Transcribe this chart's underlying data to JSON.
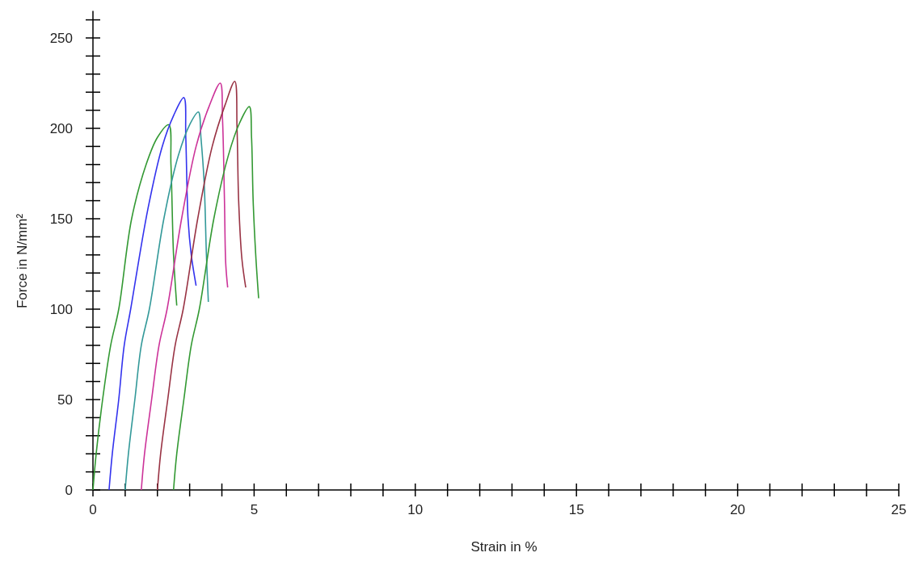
{
  "chart_data": {
    "type": "line",
    "xlabel": "Strain in %",
    "ylabel": "Force in N/mm²",
    "xlim": [
      0,
      25
    ],
    "ylim": [
      0,
      265
    ],
    "xticks": [
      0,
      {
        "value": 1,
        "label": null
      },
      {
        "value": 2,
        "label": null
      },
      {
        "value": 3,
        "label": null
      },
      {
        "value": 4,
        "label": null
      },
      5,
      {
        "value": 6,
        "label": null
      },
      {
        "value": 7,
        "label": null
      },
      {
        "value": 8,
        "label": null
      },
      {
        "value": 9,
        "label": null
      },
      10,
      {
        "value": 11,
        "label": null
      },
      {
        "value": 12,
        "label": null
      },
      {
        "value": 13,
        "label": null
      },
      {
        "value": 14,
        "label": null
      },
      15,
      {
        "value": 16,
        "label": null
      },
      {
        "value": 17,
        "label": null
      },
      {
        "value": 18,
        "label": null
      },
      {
        "value": 19,
        "label": null
      },
      20,
      {
        "value": 21,
        "label": null
      },
      {
        "value": 22,
        "label": null
      },
      {
        "value": 23,
        "label": null
      },
      {
        "value": 24,
        "label": null
      },
      25
    ],
    "yticks": [
      0,
      {
        "value": 10,
        "label": null
      },
      {
        "value": 20,
        "label": null
      },
      {
        "value": 30,
        "label": null
      },
      {
        "value": 40,
        "label": null
      },
      50,
      {
        "value": 60,
        "label": null
      },
      {
        "value": 70,
        "label": null
      },
      {
        "value": 80,
        "label": null
      },
      {
        "value": 90,
        "label": null
      },
      100,
      {
        "value": 110,
        "label": null
      },
      {
        "value": 120,
        "label": null
      },
      {
        "value": 130,
        "label": null
      },
      {
        "value": 140,
        "label": null
      },
      150,
      {
        "value": 160,
        "label": null
      },
      {
        "value": 170,
        "label": null
      },
      {
        "value": 180,
        "label": null
      },
      {
        "value": 190,
        "label": null
      },
      200,
      {
        "value": 210,
        "label": null
      },
      {
        "value": 220,
        "label": null
      },
      {
        "value": 230,
        "label": null
      },
      {
        "value": 240,
        "label": null
      },
      250,
      {
        "value": 260,
        "label": null
      }
    ],
    "grid": false,
    "marker": "none",
    "line_style": "solid",
    "series": [
      {
        "color": "#339933",
        "x": [
          0,
          0.1,
          0.3,
          0.55,
          0.8,
          1.2,
          1.65,
          2.0,
          2.35,
          2.42,
          2.5,
          2.6
        ],
        "values": [
          0,
          20,
          50,
          80,
          100,
          150,
          180,
          195,
          202,
          180,
          130,
          102
        ]
      },
      {
        "color": "#3333ee",
        "x": [
          0.5,
          0.6,
          0.8,
          0.97,
          1.17,
          1.7,
          2.15,
          2.5,
          2.82,
          2.88,
          2.95,
          3.05,
          3.2
        ],
        "values": [
          0,
          20,
          50,
          80,
          100,
          155,
          190,
          207,
          217,
          195,
          150,
          130,
          113
        ]
      },
      {
        "color": "#339999",
        "x": [
          1.0,
          1.1,
          1.3,
          1.5,
          1.75,
          2.2,
          2.65,
          3.0,
          3.27,
          3.35,
          3.45,
          3.52,
          3.58
        ],
        "values": [
          0,
          20,
          50,
          80,
          100,
          150,
          185,
          202,
          209,
          195,
          170,
          130,
          104
        ]
      },
      {
        "color": "#cc3399",
        "x": [
          1.5,
          1.6,
          1.82,
          2.05,
          2.3,
          2.75,
          3.2,
          3.6,
          3.95,
          4.02,
          4.08,
          4.12,
          4.18
        ],
        "values": [
          0,
          20,
          50,
          80,
          100,
          150,
          190,
          212,
          225,
          205,
          160,
          125,
          112
        ]
      },
      {
        "color": "#993344",
        "x": [
          2.0,
          2.1,
          2.32,
          2.55,
          2.8,
          3.25,
          3.7,
          4.1,
          4.4,
          4.47,
          4.52,
          4.62,
          4.74
        ],
        "values": [
          0,
          20,
          50,
          80,
          100,
          150,
          190,
          213,
          226,
          200,
          160,
          128,
          112
        ]
      },
      {
        "color": "#339933",
        "x": [
          2.5,
          2.6,
          2.82,
          3.05,
          3.3,
          3.75,
          4.2,
          4.55,
          4.85,
          4.92,
          4.97,
          5.05,
          5.14
        ],
        "values": [
          0,
          20,
          50,
          80,
          100,
          150,
          185,
          203,
          212,
          195,
          160,
          130,
          106
        ]
      }
    ]
  }
}
